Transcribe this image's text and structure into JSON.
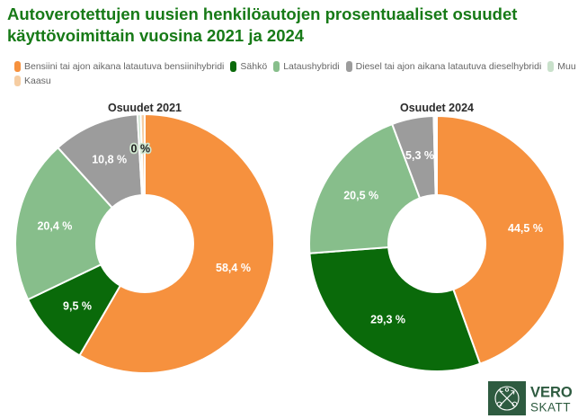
{
  "page": {
    "title": "Autoverotettujen uusien henkilöautojen prosentuaaliset osuudet käyttövoimittain vuosina 2021 ja 2024",
    "title_color": "#177A17",
    "background": "#ffffff"
  },
  "legend": {
    "text_color": "#666666",
    "items": [
      {
        "label": "Bensiini tai ajon aikana latautuva bensiinihybridi",
        "color": "#F6913E"
      },
      {
        "label": "Sähkö",
        "color": "#0A6A0A"
      },
      {
        "label": "Lataushybridi",
        "color": "#87BE8B"
      },
      {
        "label": "Diesel tai ajon aikana latautuva dieselhybridi",
        "color": "#9C9C9C"
      },
      {
        "label": "Muu",
        "color": "#C9E1CB"
      },
      {
        "label": "Kaasu",
        "color": "#F6CDA2"
      }
    ]
  },
  "chart_data": [
    {
      "type": "donut",
      "title": "Osuudet 2021",
      "unit": "%",
      "legend_position": "top",
      "segments": [
        {
          "label": "Bensiini tai ajon aikana latautuva bensiinihybridi",
          "value": 58.4,
          "value_label": "58,4 %",
          "color": "#F6913E",
          "label_color": "#ffffff"
        },
        {
          "label": "Sähkö",
          "value": 9.5,
          "value_label": "9,5 %",
          "color": "#0A6A0A",
          "label_color": "#ffffff"
        },
        {
          "label": "Lataushybridi",
          "value": 20.4,
          "value_label": "20,4 %",
          "color": "#87BE8B",
          "label_color": "#ffffff"
        },
        {
          "label": "Diesel tai ajon aikana latautuva dieselhybridi",
          "value": 10.8,
          "value_label": "10,8 %",
          "color": "#9C9C9C",
          "label_color": "#ffffff"
        },
        {
          "label": "Muu",
          "value": 0.4,
          "value_label": "0 %",
          "color": "#C9E1CB",
          "label_color": "#1f1f1f",
          "label_outline": "#cfe6cf"
        },
        {
          "label": "Kaasu",
          "value": 0.5,
          "value_label": "",
          "color": "#F6CDA2"
        }
      ]
    },
    {
      "type": "donut",
      "title": "Osuudet 2024",
      "unit": "%",
      "legend_position": "top",
      "segments": [
        {
          "label": "Bensiini tai ajon aikana latautuva bensiinihybridi",
          "value": 44.5,
          "value_label": "44,5 %",
          "color": "#F6913E",
          "label_color": "#ffffff"
        },
        {
          "label": "Sähkö",
          "value": 29.3,
          "value_label": "29,3 %",
          "color": "#0A6A0A",
          "label_color": "#ffffff"
        },
        {
          "label": "Lataushybridi",
          "value": 20.5,
          "value_label": "20,5 %",
          "color": "#87BE8B",
          "label_color": "#ffffff"
        },
        {
          "label": "Diesel tai ajon aikana latautuva dieselhybridi",
          "value": 5.3,
          "value_label": "5,3 %",
          "color": "#9C9C9C",
          "label_color": "#ffffff"
        },
        {
          "label": "Muu",
          "value": 0.2,
          "value_label": "",
          "color": "#C9E1CB"
        },
        {
          "label": "Kaasu",
          "value": 0.2,
          "value_label": "",
          "color": "#F6CDA2"
        }
      ]
    }
  ],
  "logo": {
    "line1": "VERO",
    "line2": "SKATT",
    "color": "#2E5B40"
  }
}
